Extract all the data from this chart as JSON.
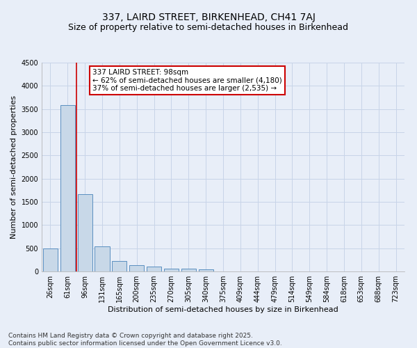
{
  "title1": "337, LAIRD STREET, BIRKENHEAD, CH41 7AJ",
  "title2": "Size of property relative to semi-detached houses in Birkenhead",
  "xlabel": "Distribution of semi-detached houses by size in Birkenhead",
  "ylabel": "Number of semi-detached properties",
  "categories": [
    "26sqm",
    "61sqm",
    "96sqm",
    "131sqm",
    "165sqm",
    "200sqm",
    "235sqm",
    "270sqm",
    "305sqm",
    "340sqm",
    "375sqm",
    "409sqm",
    "444sqm",
    "479sqm",
    "514sqm",
    "549sqm",
    "584sqm",
    "618sqm",
    "653sqm",
    "688sqm",
    "723sqm"
  ],
  "values": [
    500,
    3580,
    1660,
    540,
    225,
    140,
    100,
    65,
    55,
    45,
    0,
    0,
    0,
    0,
    0,
    0,
    0,
    0,
    0,
    0,
    0
  ],
  "bar_color": "#c8d8e8",
  "bar_edge_color": "#5a8fc0",
  "red_line_bin": 2,
  "annotation_text": "337 LAIRD STREET: 98sqm\n← 62% of semi-detached houses are smaller (4,180)\n37% of semi-detached houses are larger (2,535) →",
  "annotation_box_color": "#ffffff",
  "annotation_box_edge": "#cc0000",
  "ylim": [
    0,
    4500
  ],
  "yticks": [
    0,
    500,
    1000,
    1500,
    2000,
    2500,
    3000,
    3500,
    4000,
    4500
  ],
  "footer_text": "Contains HM Land Registry data © Crown copyright and database right 2025.\nContains public sector information licensed under the Open Government Licence v3.0.",
  "bg_color": "#e8eef8",
  "grid_color": "#c8d4e8",
  "title_fontsize": 10,
  "subtitle_fontsize": 9,
  "axis_label_fontsize": 8,
  "tick_fontsize": 7,
  "annotation_fontsize": 7.5,
  "footer_fontsize": 6.5
}
